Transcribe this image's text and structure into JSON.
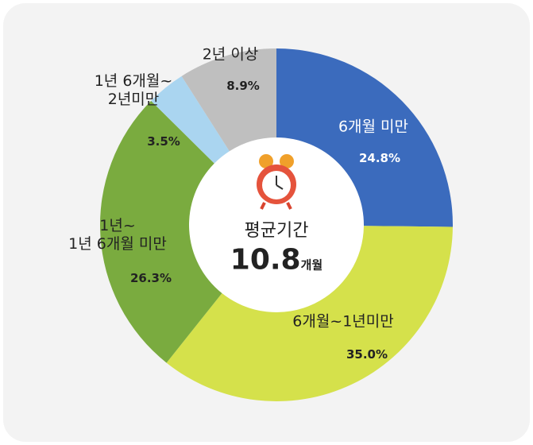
{
  "chart_data": {
    "type": "donut",
    "categories": [
      "6개월 미만",
      "6개월~1년미만",
      "1년~\n1년 6개월 미만",
      "1년 6개월~\n2년미만",
      "2년 이상"
    ],
    "values": [
      24.8,
      35.0,
      26.3,
      3.5,
      8.9
    ],
    "value_labels": [
      "24.8",
      "35.0",
      "26.3",
      "3.5",
      "8.9"
    ],
    "value_unit": "%",
    "colors": [
      "#3b6bbd",
      "#d5e14b",
      "#7aab3f",
      "#aad5f0",
      "#bfbfbf"
    ],
    "center_label": "평균기간",
    "center_value": "10.8",
    "center_unit": "개월"
  }
}
